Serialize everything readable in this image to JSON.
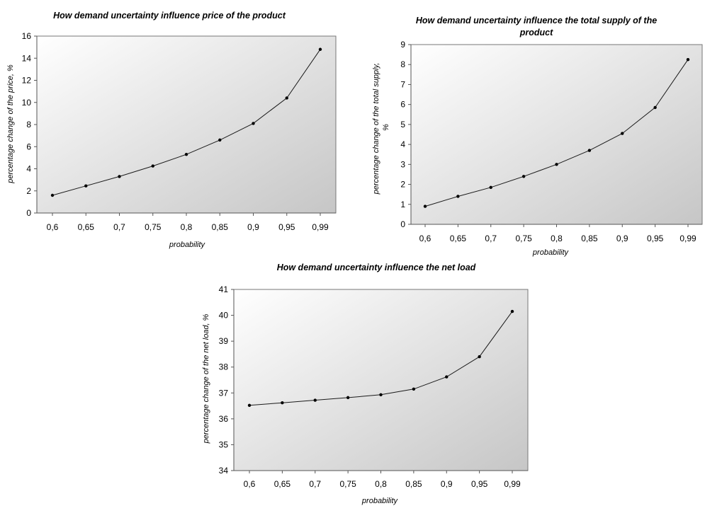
{
  "colors": {
    "plot_gradient_light": "#ffffff",
    "plot_gradient_dark": "#c6c6c6",
    "line": "#1a1a1a",
    "marker": "#000000"
  },
  "chart_data": [
    {
      "type": "line",
      "title": "How demand uncertainty influence price of the product",
      "xlabel": "probability",
      "ylabel": "percentage change of the price, %",
      "categories": [
        "0,6",
        "0,65",
        "0,7",
        "0,75",
        "0,8",
        "0,85",
        "0,9",
        "0,95",
        "0,99"
      ],
      "values": [
        1.6,
        2.45,
        3.3,
        4.25,
        5.3,
        6.6,
        8.1,
        10.4,
        14.8
      ],
      "ylim": [
        0,
        16
      ],
      "yticks": [
        0,
        2,
        4,
        6,
        8,
        10,
        12,
        14,
        16
      ],
      "ytick_labels": [
        "0",
        "2",
        "4",
        "6",
        "8",
        "10",
        "12",
        "14",
        "16"
      ],
      "grid": false
    },
    {
      "type": "line",
      "title": "How demand uncertainty influence the total supply of the product",
      "xlabel": "probability",
      "ylabel": "percentage change of the total supply, %",
      "categories": [
        "0,6",
        "0,65",
        "0,7",
        "0,75",
        "0,8",
        "0,85",
        "0,9",
        "0,95",
        "0,99"
      ],
      "values": [
        0.9,
        1.4,
        1.85,
        2.4,
        3.0,
        3.7,
        4.55,
        5.85,
        8.25
      ],
      "ylim": [
        0,
        9
      ],
      "yticks": [
        0,
        1,
        2,
        3,
        4,
        5,
        6,
        7,
        8,
        9
      ],
      "ytick_labels": [
        "0",
        "1",
        "2",
        "3",
        "4",
        "5",
        "6",
        "7",
        "8",
        "9"
      ],
      "grid": false
    },
    {
      "type": "line",
      "title": "How demand uncertainty influence the net load",
      "xlabel": "probability",
      "ylabel": "percentage change of the net load, %",
      "categories": [
        "0,6",
        "0,65",
        "0,7",
        "0,75",
        "0,8",
        "0,85",
        "0,9",
        "0,95",
        "0,99"
      ],
      "values": [
        36.52,
        36.62,
        36.72,
        36.82,
        36.93,
        37.15,
        37.62,
        38.4,
        40.15
      ],
      "ylim": [
        34,
        41
      ],
      "yticks": [
        34,
        35,
        36,
        37,
        38,
        39,
        40,
        41
      ],
      "ytick_labels": [
        "34",
        "35",
        "36",
        "37",
        "38",
        "39",
        "40",
        "41"
      ],
      "grid": false
    }
  ]
}
